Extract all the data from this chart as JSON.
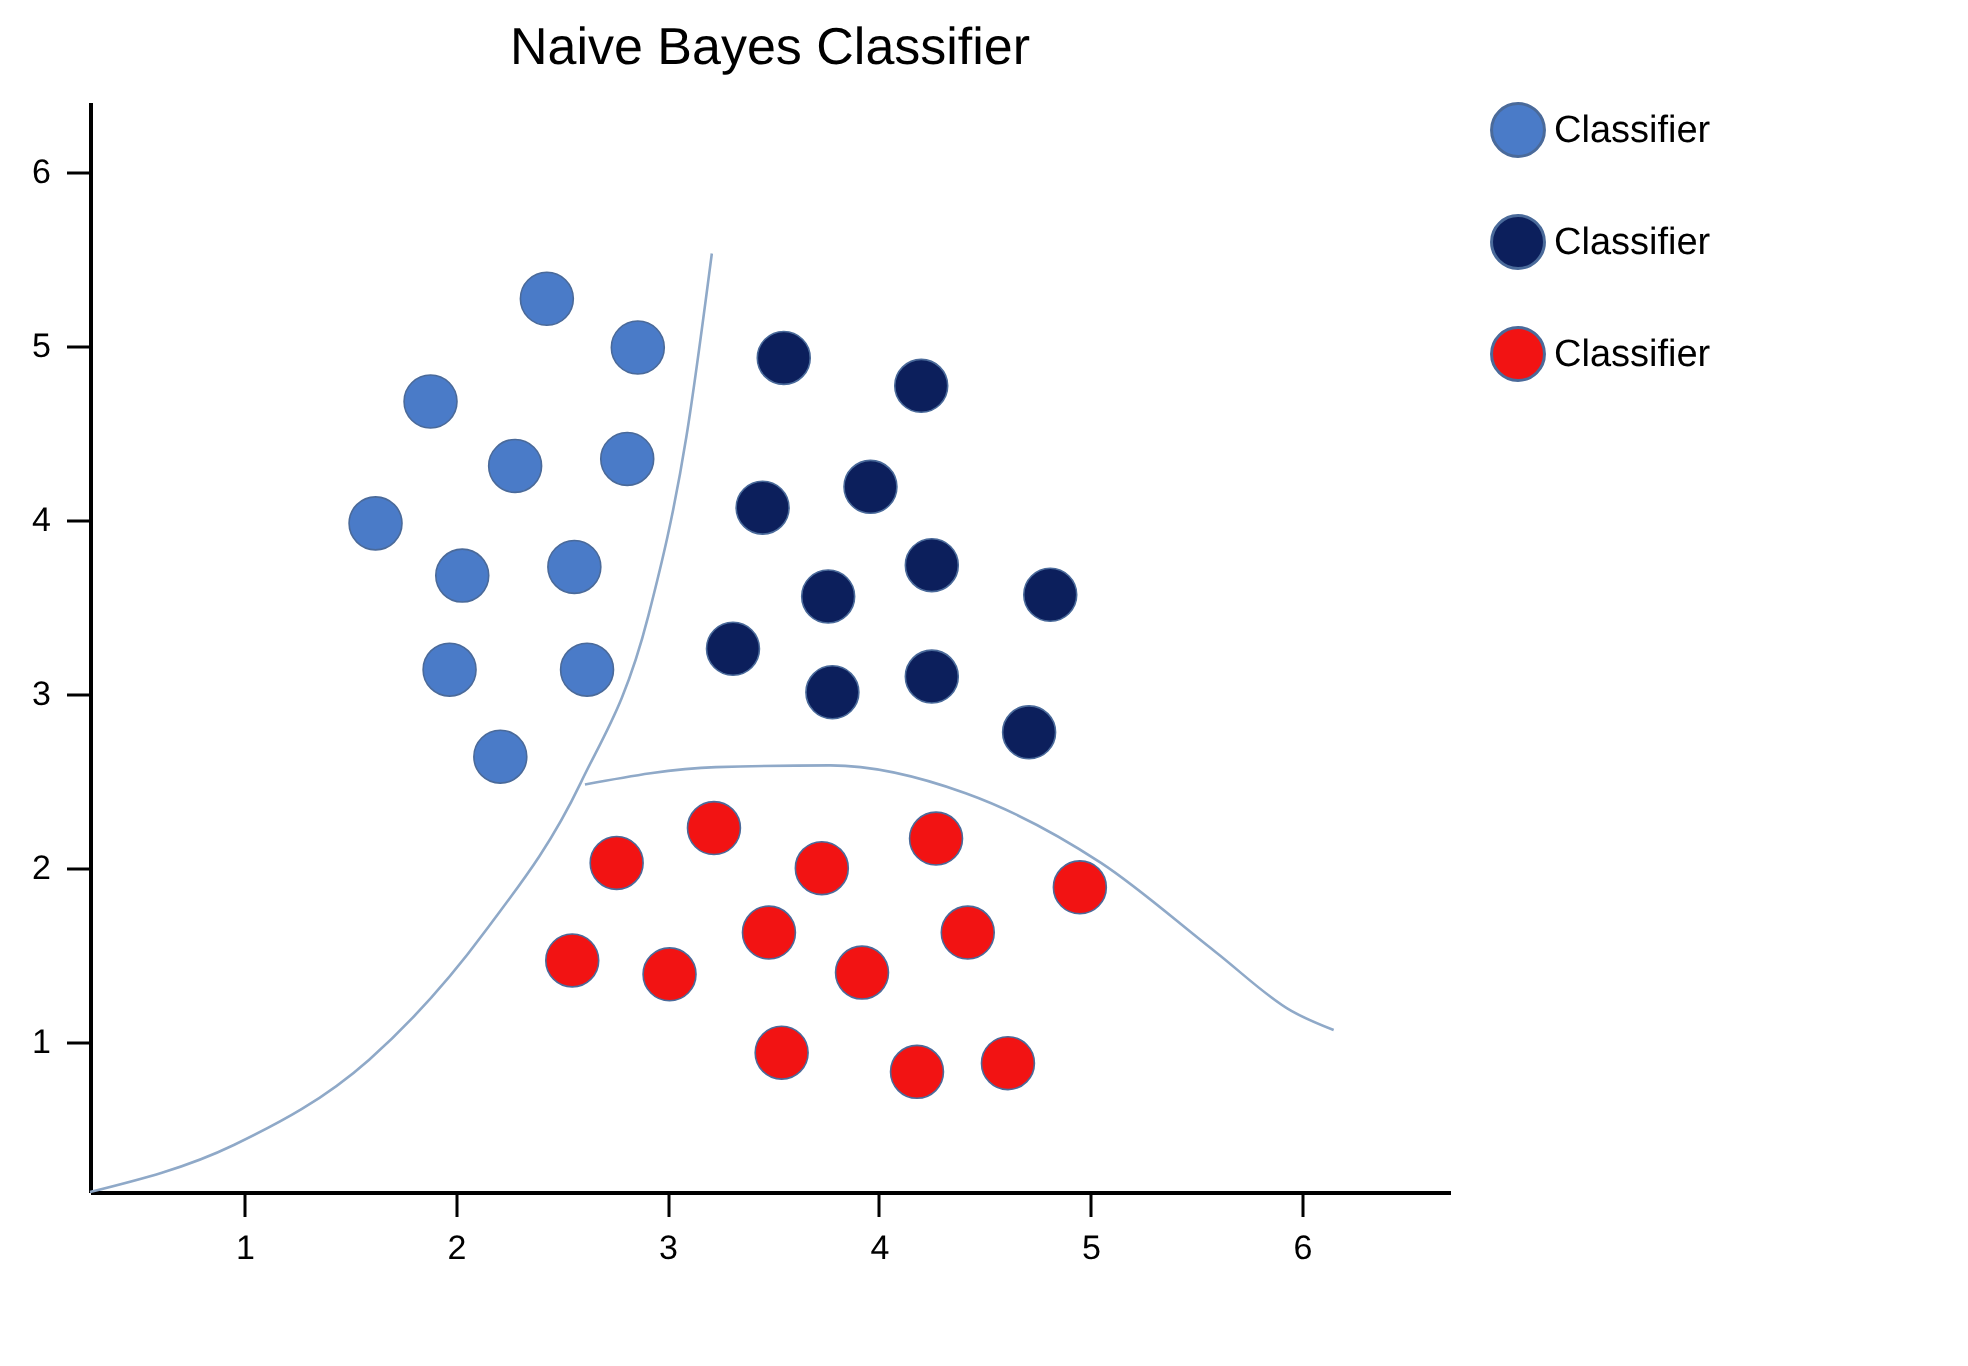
{
  "chart_data": {
    "type": "scatter",
    "title": "Naive Bayes Classifier",
    "xlim": [
      0.27,
      6.7
    ],
    "ylim": [
      0.14,
      6.4
    ],
    "xticks": [
      1,
      2,
      3,
      4,
      5,
      6
    ],
    "yticks": [
      1,
      2,
      3,
      4,
      5,
      6
    ],
    "grid": false,
    "legend": "top right",
    "series": [
      {
        "name": "Classifier",
        "color": "#4a7bc8",
        "marker": "circle",
        "x": [
          2.43,
          2.86,
          1.88,
          2.28,
          2.81,
          1.62,
          2.03,
          2.56,
          1.97,
          2.62,
          2.21
        ],
        "values": [
          5.27,
          4.99,
          4.68,
          4.31,
          4.35,
          3.98,
          3.68,
          3.73,
          3.14,
          3.14,
          2.64
        ]
      },
      {
        "name": "Classifier",
        "color": "#0c1f5c",
        "marker": "circle",
        "x": [
          3.55,
          4.2,
          3.45,
          3.96,
          4.25,
          3.76,
          4.81,
          3.31,
          3.78,
          4.25,
          4.71
        ],
        "values": [
          4.93,
          4.77,
          4.07,
          4.19,
          3.74,
          3.56,
          3.57,
          3.26,
          3.01,
          3.1,
          2.78
        ]
      },
      {
        "name": "Classifier",
        "color": "#f21313",
        "marker": "circle",
        "x": [
          2.76,
          3.22,
          3.73,
          4.27,
          4.95,
          2.55,
          3.01,
          3.48,
          3.92,
          4.42,
          3.54,
          4.18,
          4.61
        ],
        "values": [
          2.03,
          2.23,
          2.0,
          2.17,
          1.89,
          1.47,
          1.39,
          1.63,
          1.4,
          1.63,
          0.94,
          0.83,
          0.88
        ]
      },
      {
        "type": "line",
        "color": "#8fa9c8",
        "line_style": "solid",
        "x": [
          0.27,
          0.95,
          1.59,
          2.14,
          2.59,
          2.91,
          3.09,
          3.21
        ],
        "values": [
          0.14,
          0.41,
          0.9,
          1.64,
          2.49,
          3.45,
          4.48,
          5.53
        ]
      },
      {
        "type": "line",
        "color": "#8fa9c8",
        "line_style": "solid",
        "x": [
          2.61,
          3.23,
          3.77,
          4.41,
          5.05,
          5.59,
          5.95,
          6.15
        ],
        "values": [
          2.48,
          2.58,
          2.59,
          2.43,
          2.03,
          1.52,
          1.18,
          1.07
        ]
      }
    ]
  }
}
